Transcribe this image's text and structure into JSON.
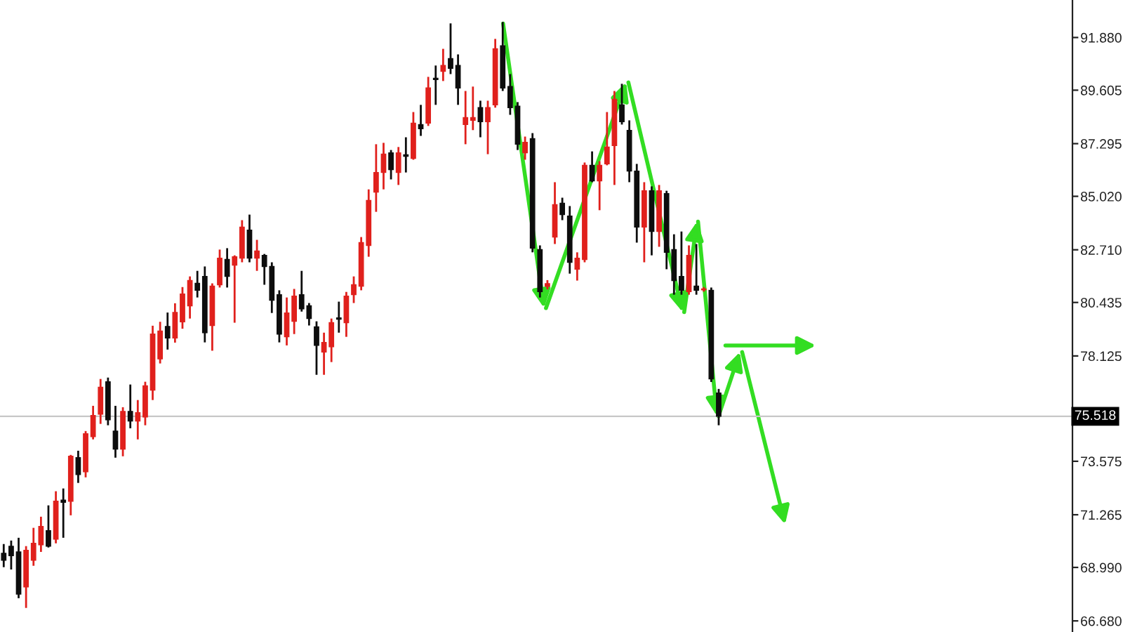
{
  "chart_data": {
    "type": "candlestick",
    "categories": [
      null,
      null,
      null,
      null,
      null,
      null,
      null,
      null,
      null,
      null,
      null,
      null,
      null,
      null,
      null,
      null,
      null,
      null,
      null,
      null,
      null,
      null,
      null,
      null,
      null,
      null,
      null,
      null,
      null,
      null,
      null,
      null,
      null,
      null,
      null,
      null,
      null,
      null,
      null,
      null,
      null,
      null,
      null,
      null,
      null,
      null,
      null,
      null,
      null,
      null,
      null,
      null,
      null,
      null,
      null,
      null,
      null,
      null,
      null,
      null,
      null,
      null,
      null,
      null,
      null,
      null,
      null,
      null,
      null,
      null,
      null,
      null,
      null,
      null,
      null,
      null,
      null,
      null,
      null,
      null,
      null,
      null,
      null,
      null,
      null,
      null,
      null,
      null,
      null,
      null,
      null,
      null,
      null,
      null,
      null,
      null,
      null,
      null,
      null,
      null,
      null,
      null,
      null,
      null,
      null,
      null,
      null,
      null,
      null,
      null,
      null,
      null,
      null,
      null,
      null,
      null,
      null,
      null,
      null,
      null,
      null,
      null,
      null,
      null,
      null,
      null,
      null,
      null,
      null,
      null,
      null,
      null,
      null,
      null,
      null,
      null,
      null,
      null,
      null,
      null,
      null,
      null,
      null,
      null
    ],
    "ohlc": [
      [
        69.6,
        70.0,
        69.0,
        69.3
      ],
      [
        69.9,
        70.15,
        68.9,
        69.5
      ],
      [
        69.66,
        70.27,
        67.66,
        67.84
      ],
      [
        68.15,
        69.91,
        67.24,
        69.73
      ],
      [
        69.3,
        70.7,
        69.06,
        70.03
      ],
      [
        69.97,
        71.18,
        69.66,
        70.76
      ],
      [
        70.58,
        71.67,
        69.85,
        69.91
      ],
      [
        70.21,
        72.28,
        70.03,
        71.85
      ],
      [
        71.9,
        72.4,
        70.27,
        71.8
      ],
      [
        71.85,
        73.85,
        71.24,
        73.79
      ],
      [
        73.73,
        74.03,
        72.64,
        73.0
      ],
      [
        73.12,
        74.88,
        72.88,
        74.76
      ],
      [
        74.64,
        75.97,
        74.52,
        75.55
      ],
      [
        75.61,
        77.13,
        75.19,
        76.77
      ],
      [
        77.01,
        77.19,
        75.13,
        75.37
      ],
      [
        74.88,
        75.97,
        73.73,
        74.1
      ],
      [
        74.1,
        75.91,
        73.79,
        75.73
      ],
      [
        75.73,
        76.89,
        75.0,
        75.31
      ],
      [
        75.31,
        76.22,
        74.52,
        75.67
      ],
      [
        75.49,
        77.01,
        75.13,
        76.83
      ],
      [
        76.65,
        79.43,
        76.22,
        79.07
      ],
      [
        78.0,
        79.6,
        77.8,
        79.2
      ],
      [
        79.4,
        80.0,
        78.4,
        78.9
      ],
      [
        78.9,
        80.4,
        78.7,
        80.0
      ],
      [
        79.6,
        81.1,
        79.3,
        80.8
      ],
      [
        80.29,
        81.56,
        79.74,
        81.38
      ],
      [
        81.26,
        81.8,
        80.65,
        80.96
      ],
      [
        81.56,
        81.99,
        78.71,
        79.13
      ],
      [
        79.44,
        81.26,
        78.35,
        81.14
      ],
      [
        81.2,
        82.72,
        81.08,
        82.35
      ],
      [
        82.29,
        82.78,
        81.08,
        81.56
      ],
      [
        82.05,
        82.47,
        79.56,
        82.41
      ],
      [
        82.35,
        83.99,
        82.17,
        83.69
      ],
      [
        83.56,
        84.23,
        82.17,
        82.35
      ],
      [
        82.35,
        83.14,
        81.8,
        82.66
      ],
      [
        82.47,
        82.53,
        81.2,
        81.99
      ],
      [
        81.99,
        82.17,
        79.98,
        80.53
      ],
      [
        80.77,
        80.96,
        78.71,
        79.07
      ],
      [
        78.95,
        80.65,
        78.58,
        79.98
      ],
      [
        79.62,
        81.02,
        79.07,
        80.71
      ],
      [
        80.77,
        81.8,
        80.04,
        80.16
      ],
      [
        80.29,
        80.41,
        79.44,
        79.74
      ],
      [
        79.38,
        79.62,
        77.31,
        78.58
      ],
      [
        78.29,
        79.13,
        77.31,
        78.71
      ],
      [
        78.52,
        79.74,
        77.86,
        79.56
      ],
      [
        79.77,
        80.47,
        79.13,
        79.71
      ],
      [
        79.56,
        80.89,
        78.95,
        80.71
      ],
      [
        80.77,
        81.56,
        80.41,
        81.2
      ],
      [
        81.14,
        83.26,
        80.96,
        83.02
      ],
      [
        82.9,
        85.32,
        82.41,
        84.84
      ],
      [
        85.2,
        87.27,
        84.35,
        86.05
      ],
      [
        86.05,
        87.33,
        85.32,
        86.84
      ],
      [
        86.9,
        87.02,
        85.75,
        86.17
      ],
      [
        86.05,
        87.15,
        85.51,
        86.9
      ],
      [
        86.81,
        87.57,
        86.05,
        86.75
      ],
      [
        86.66,
        88.66,
        86.6,
        88.18
      ],
      [
        88.12,
        88.97,
        87.63,
        87.94
      ],
      [
        88.18,
        90.18,
        88.06,
        89.7
      ],
      [
        90.12,
        90.67,
        88.97,
        90.06
      ],
      [
        90.42,
        91.39,
        90.0,
        90.67
      ],
      [
        90.97,
        92.49,
        90.3,
        90.55
      ],
      [
        90.67,
        91.15,
        88.97,
        89.7
      ],
      [
        88.12,
        89.57,
        87.27,
        88.42
      ],
      [
        88.3,
        89.76,
        87.88,
        88.42
      ],
      [
        88.85,
        89.15,
        87.57,
        88.24
      ],
      [
        88.24,
        89.15,
        86.84,
        88.85
      ],
      [
        88.97,
        91.82,
        88.85,
        91.39
      ],
      [
        91.52,
        92.55,
        89.57,
        89.7
      ],
      [
        89.76,
        90.3,
        88.54,
        88.85
      ],
      [
        88.91,
        89.09,
        87.02,
        87.27
      ],
      [
        86.9,
        87.6,
        86.6,
        87.35
      ],
      [
        87.51,
        87.75,
        82.6,
        82.78
      ],
      [
        82.72,
        82.9,
        80.65,
        80.9
      ],
      [
        81.13,
        81.4,
        81.0,
        81.25
      ],
      [
        83.26,
        85.63,
        82.96,
        84.66
      ],
      [
        84.72,
        84.96,
        83.99,
        84.23
      ],
      [
        84.17,
        84.6,
        81.68,
        82.17
      ],
      [
        81.87,
        82.6,
        81.38,
        82.35
      ],
      [
        82.29,
        86.48,
        82.17,
        86.36
      ],
      [
        86.36,
        86.96,
        85.63,
        85.69
      ],
      [
        85.69,
        86.54,
        84.42,
        86.36
      ],
      [
        86.42,
        88.66,
        86.36,
        87.15
      ],
      [
        87.21,
        89.57,
        85.51,
        89.21
      ],
      [
        88.97,
        89.88,
        88.12,
        88.24
      ],
      [
        87.87,
        88.3,
        85.63,
        86.11
      ],
      [
        86.11,
        86.42,
        83.02,
        83.69
      ],
      [
        83.69,
        85.63,
        82.17,
        85.26
      ],
      [
        85.26,
        85.45,
        82.47,
        83.5
      ],
      [
        83.5,
        85.51,
        82.84,
        85.26
      ],
      [
        85.14,
        85.26,
        81.87,
        82.6
      ],
      [
        82.72,
        83.38,
        80.77,
        81.38
      ],
      [
        81.56,
        83.5,
        80.77,
        80.96
      ],
      [
        80.9,
        82.9,
        80.77,
        82.47
      ],
      [
        81.14,
        82.96,
        80.77,
        80.96
      ],
      [
        80.98,
        81.1,
        80.9,
        81.02
      ],
      [
        80.96,
        81.08,
        77.0,
        77.13
      ],
      [
        76.52,
        76.7,
        75.13,
        75.52
      ],
      null,
      null,
      null,
      null,
      null,
      null,
      null,
      null,
      null,
      null,
      null,
      null,
      null,
      null,
      null,
      null,
      null,
      null,
      null,
      null,
      null,
      null,
      null,
      null,
      null,
      null,
      null,
      null,
      null,
      null,
      null,
      null,
      null,
      null,
      null,
      null,
      null,
      null,
      null,
      null,
      null,
      null,
      null,
      null,
      null,
      null,
      null
    ],
    "ylim": [
      66.2,
      93.5
    ],
    "yticks": [
      {
        "value": 66.68,
        "label": "66.680"
      },
      {
        "value": 68.99,
        "label": "68.990"
      },
      {
        "value": 71.265,
        "label": "71.265"
      },
      {
        "value": 73.575,
        "label": "73.575"
      },
      {
        "value": 75.85,
        "label": null
      },
      {
        "value": 78.125,
        "label": "78.125"
      },
      {
        "value": 80.435,
        "label": "80.435"
      },
      {
        "value": 82.71,
        "label": "82.710"
      },
      {
        "value": 85.02,
        "label": "85.020"
      },
      {
        "value": 87.295,
        "label": "87.295"
      },
      {
        "value": 89.605,
        "label": "89.605"
      },
      {
        "value": 91.88,
        "label": "91.880"
      }
    ],
    "tick_labels": "y",
    "ref_lines": [
      {
        "axis": "y",
        "value": 75.518,
        "label": "75.518",
        "color": "#c8c8c8"
      }
    ]
  }
}
